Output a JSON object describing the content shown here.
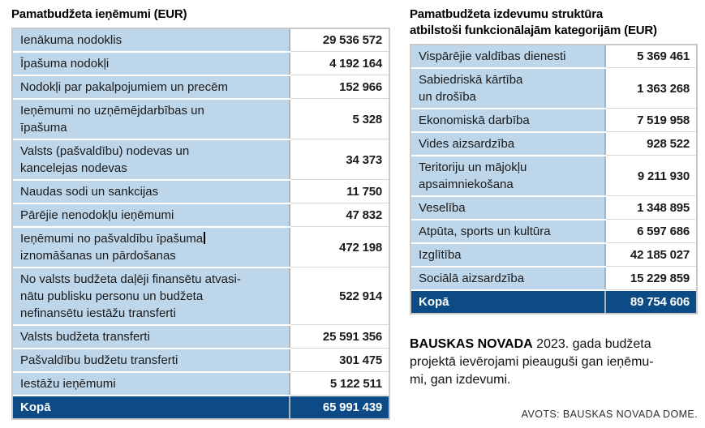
{
  "colors": {
    "cell_blue": "#BDD6EA",
    "total_navy": "#0C4B86",
    "column_divider_gray": "#A8B4BE",
    "outer_border_gray": "#C8C8C8",
    "value_row_line": "#D9D9D9",
    "text": "#1A1A1A",
    "total_text": "#FFFFFF"
  },
  "tables": [
    {
      "title": "Pamatbudžeta ieņēmumi (EUR)",
      "rows": [
        {
          "label": "Ienākuma nodoklis",
          "value": "29 536 572"
        },
        {
          "label": "Īpašuma nodokļi",
          "value": "4 192 164"
        },
        {
          "label": "Nodokļi par pakalpojumiem un precēm",
          "value": "152 966"
        },
        {
          "label": "Ieņēmumi no uzņēmējdarbības un\nīpašuma",
          "value": "5 328"
        },
        {
          "label": "Valsts (pašvaldību) nodevas un\nkancelejas nodevas",
          "value": "34 373"
        },
        {
          "label": "Naudas sodi un sankcijas",
          "value": "11 750"
        },
        {
          "label": "Pārējie nenodokļu ieņēmumi",
          "value": "47 832"
        },
        {
          "label": "Ieņēmumi no pašvaldību īpašuma\niznomāšanas un pārdošanas",
          "value": "472 198",
          "caret_after": "Ieņēmumi no pašvaldību īpašuma"
        },
        {
          "label": "No valsts budžeta daļēji finansētu atvasi-\nnātu publisku personu un budžeta\nnefinansētu iestāžu transferti",
          "value": "522 914"
        },
        {
          "label": "Valsts budžeta transferti",
          "value": "25 591 356"
        },
        {
          "label": "Pašvaldību budžetu transferti",
          "value": "301 475"
        },
        {
          "label": "Iestāžu ieņēmumi",
          "value": "5 122 511"
        },
        {
          "label": "Kopā",
          "value": "65 991 439",
          "total": true
        }
      ]
    },
    {
      "title": "Pamatbudžeta izdevumu struktūra\natbilstoši funkcionālajām kategorijām (EUR)",
      "rows": [
        {
          "label": "Vispārējie valdības dienesti",
          "value": "5 369 461"
        },
        {
          "label": "Sabiedriskā kārtība\nun drošība",
          "value": "1 363 268"
        },
        {
          "label": "Ekonomiskā darbība",
          "value": "7 519 958"
        },
        {
          "label": "Vides aizsardzība",
          "value": "928 522"
        },
        {
          "label": "Teritoriju un mājokļu\napsaimniekošana",
          "value": "9 211 930"
        },
        {
          "label": "Veselība",
          "value": "1 348 895"
        },
        {
          "label": "Atpūta, sports un kultūra",
          "value": "6 597 686"
        },
        {
          "label": "Izglītība",
          "value": "42 185 027"
        },
        {
          "label": "Sociālā aizsardzība",
          "value": "15 229 859"
        },
        {
          "label": "Kopā",
          "value": "89 754 606",
          "total": true
        }
      ]
    }
  ],
  "footnote": {
    "lead": "BAUSKAS NOVADA",
    "rest": " 2023. gada budžeta\nprojektā ievērojami pieauguši gan ieņēmu-\nmi, gan izdevumi."
  },
  "source": "AVOTS: BAUSKAS NOVADA DOME."
}
